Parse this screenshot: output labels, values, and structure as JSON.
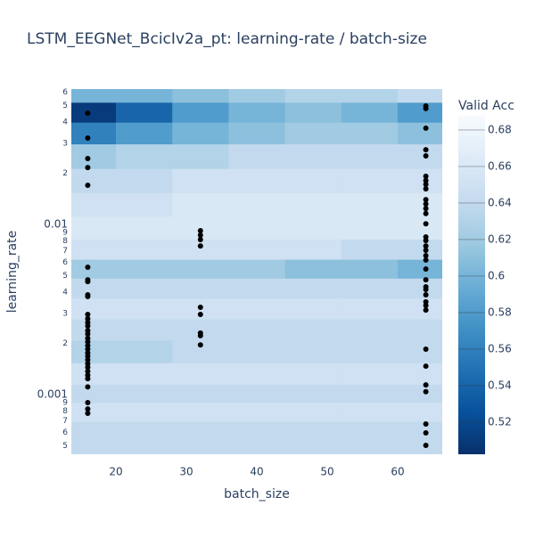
{
  "chart_data": {
    "type": "contour",
    "title": "LSTM_EEGNet_BcicIv2a_pt: learning-rate / batch-size",
    "x_label": "batch_size",
    "y_label": "learning_rate",
    "colorbar_title": "Valid Acc",
    "xlim": [
      13.67,
      66.33
    ],
    "xticks": [
      20,
      30,
      40,
      50,
      60
    ],
    "ylim": [
      0.000446,
      0.0625
    ],
    "log_y": true,
    "yticks": [
      {
        "value": 0.06,
        "label": "6"
      },
      {
        "value": 0.05,
        "label": "5"
      },
      {
        "value": 0.04,
        "label": "4"
      },
      {
        "value": 0.03,
        "label": "3"
      },
      {
        "value": 0.02,
        "label": "2"
      },
      0.01,
      {
        "value": 0.009,
        "label": "9"
      },
      {
        "value": 0.008,
        "label": "8"
      },
      {
        "value": 0.007,
        "label": "7"
      },
      {
        "value": 0.006,
        "label": "6"
      },
      {
        "value": 0.005,
        "label": "5"
      },
      {
        "value": 0.004,
        "label": "4"
      },
      {
        "value": 0.003,
        "label": "3"
      },
      {
        "value": 0.002,
        "label": "2"
      },
      0.001,
      {
        "value": 0.0009,
        "label": "9"
      },
      {
        "value": 0.0008,
        "label": "8"
      },
      {
        "value": 0.0007,
        "label": "7"
      },
      {
        "value": 0.0006,
        "label": "6"
      },
      {
        "value": 0.0005,
        "label": "5"
      }
    ],
    "zlim": [
      0.5024,
      0.6878
    ],
    "zticks": [
      0.52,
      0.54,
      0.56,
      0.58,
      0.6,
      0.62,
      0.64,
      0.66,
      0.68
    ],
    "colorscale": [
      "#08306b",
      "#08519c",
      "#2171b5",
      "#4292c6",
      "#6baed6",
      "#9ecae1",
      "#c6dbef",
      "#deebf7",
      "#f7fbff"
    ],
    "contour": {
      "x": [
        16,
        24,
        32,
        40,
        48,
        56,
        64
      ],
      "y": [
        0.06,
        0.045,
        0.035,
        0.025,
        0.018,
        0.013,
        0.0095,
        0.007,
        0.0055,
        0.0042,
        0.0032,
        0.0024,
        0.0018,
        0.0013,
        0.001,
        0.0008,
        0.0006,
        0.00047
      ],
      "z": [
        [
          0.6,
          0.6,
          0.61,
          0.62,
          0.63,
          0.63,
          0.64
        ],
        [
          0.51,
          0.54,
          0.58,
          0.6,
          0.61,
          0.6,
          0.58
        ],
        [
          0.56,
          0.58,
          0.6,
          0.61,
          0.62,
          0.62,
          0.61
        ],
        [
          0.62,
          0.63,
          0.63,
          0.64,
          0.64,
          0.64,
          0.64
        ],
        [
          0.64,
          0.64,
          0.65,
          0.65,
          0.65,
          0.65,
          0.65
        ],
        [
          0.65,
          0.65,
          0.66,
          0.66,
          0.66,
          0.66,
          0.66
        ],
        [
          0.66,
          0.66,
          0.66,
          0.66,
          0.66,
          0.66,
          0.66
        ],
        [
          0.65,
          0.65,
          0.65,
          0.65,
          0.65,
          0.64,
          0.64
        ],
        [
          0.62,
          0.62,
          0.62,
          0.62,
          0.61,
          0.61,
          0.6
        ],
        [
          0.64,
          0.64,
          0.64,
          0.64,
          0.64,
          0.64,
          0.64
        ],
        [
          0.65,
          0.65,
          0.65,
          0.65,
          0.65,
          0.65,
          0.65
        ],
        [
          0.64,
          0.64,
          0.64,
          0.64,
          0.64,
          0.64,
          0.64
        ],
        [
          0.63,
          0.63,
          0.64,
          0.64,
          0.64,
          0.64,
          0.64
        ],
        [
          0.65,
          0.65,
          0.65,
          0.65,
          0.65,
          0.65,
          0.65
        ],
        [
          0.64,
          0.64,
          0.64,
          0.64,
          0.64,
          0.64,
          0.64
        ],
        [
          0.65,
          0.65,
          0.65,
          0.65,
          0.65,
          0.65,
          0.65
        ],
        [
          0.64,
          0.64,
          0.64,
          0.64,
          0.64,
          0.64,
          0.64
        ],
        [
          0.64,
          0.64,
          0.64,
          0.64,
          0.64,
          0.64,
          0.64
        ]
      ]
    },
    "points": {
      "color": "#000000",
      "x": [
        16,
        16,
        16,
        16,
        16,
        16,
        16,
        16,
        16,
        16,
        16,
        16,
        16,
        16,
        16,
        16,
        16,
        16,
        16,
        16,
        16,
        16,
        16,
        16,
        16,
        16,
        16,
        16,
        16,
        16,
        16,
        16,
        32,
        32,
        32,
        32,
        32,
        32,
        32,
        32,
        32,
        64,
        64,
        64,
        64,
        64,
        64,
        64,
        64,
        64,
        64,
        64,
        64,
        64,
        64,
        64,
        64,
        64,
        64,
        64,
        64,
        64,
        64,
        64,
        64,
        64,
        64,
        64,
        64,
        64,
        64,
        64,
        64,
        64,
        64,
        64
      ],
      "y": [
        0.0451,
        0.0322,
        0.0244,
        0.0216,
        0.017,
        0.00561,
        0.00473,
        0.00462,
        0.00386,
        0.00377,
        0.00296,
        0.00279,
        0.00265,
        0.00253,
        0.00238,
        0.00227,
        0.00214,
        0.00204,
        0.00194,
        0.00185,
        0.00176,
        0.00168,
        0.0016,
        0.00152,
        0.00145,
        0.00137,
        0.0013,
        0.00124,
        0.00111,
        0.000897,
        0.000824,
        0.000776,
        0.00919,
        0.00865,
        0.00815,
        0.00748,
        0.00326,
        0.00296,
        0.0023,
        0.00222,
        0.00196,
        0.0497,
        0.048,
        0.0368,
        0.0275,
        0.0253,
        0.0192,
        0.0181,
        0.0172,
        0.0162,
        0.014,
        0.0132,
        0.0124,
        0.0116,
        0.0101,
        0.00845,
        0.00805,
        0.00748,
        0.00705,
        0.00656,
        0.00618,
        0.00547,
        0.00473,
        0.0043,
        0.00415,
        0.00386,
        0.00351,
        0.00334,
        0.00314,
        0.00185,
        0.00147,
        0.00114,
        0.00104,
        0.000672,
        0.000596,
        0.000503
      ]
    }
  }
}
